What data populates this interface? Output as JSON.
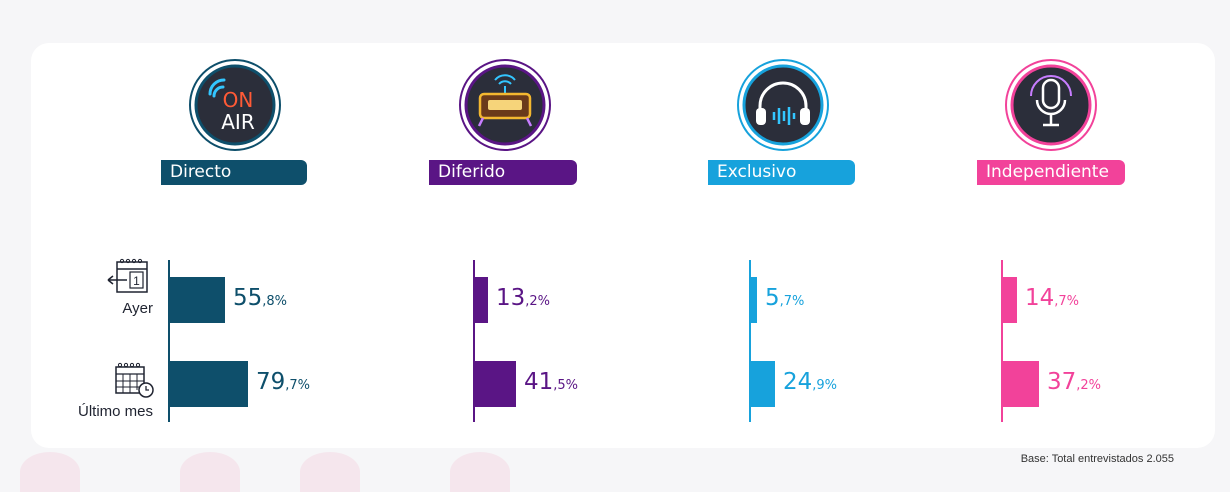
{
  "chart_data": {
    "type": "bar",
    "orientation": "horizontal",
    "categories": [
      "Ayer",
      "Último mes"
    ],
    "series": [
      {
        "name": "Directo",
        "color": "#0e4f6b",
        "icon": "on-air-icon",
        "values": [
          55.8,
          79.7
        ],
        "labels": [
          {
            "int": "55",
            "dec": ",8%"
          },
          {
            "int": "79",
            "dec": ",7%"
          }
        ]
      },
      {
        "name": "Diferido",
        "color": "#5a1585",
        "icon": "radio-icon",
        "values": [
          13.2,
          41.5
        ],
        "labels": [
          {
            "int": "13",
            "dec": ",2%"
          },
          {
            "int": "41",
            "dec": ",5%"
          }
        ]
      },
      {
        "name": "Exclusivo",
        "color": "#17a2dc",
        "icon": "headphones-icon",
        "values": [
          5.7,
          24.9
        ],
        "labels": [
          {
            "int": "5",
            "dec": ",7%"
          },
          {
            "int": "24",
            "dec": ",9%"
          }
        ]
      },
      {
        "name": "Independiente",
        "color": "#f2429a",
        "icon": "microphone-icon",
        "values": [
          14.7,
          37.2
        ],
        "labels": [
          {
            "int": "14",
            "dec": ",7%"
          },
          {
            "int": "37",
            "dec": ",2%"
          }
        ]
      }
    ],
    "row_icons": [
      "calendar-day-icon",
      "calendar-month-icon"
    ],
    "calendar_day_number": "1",
    "title": "",
    "xlabel": "",
    "ylabel": "",
    "xlim": [
      0,
      100
    ],
    "grid": false
  },
  "footer": {
    "base": "Base: Total entrevistados 2.055"
  },
  "icon_text": {
    "on": "ON",
    "air": "AIR"
  }
}
